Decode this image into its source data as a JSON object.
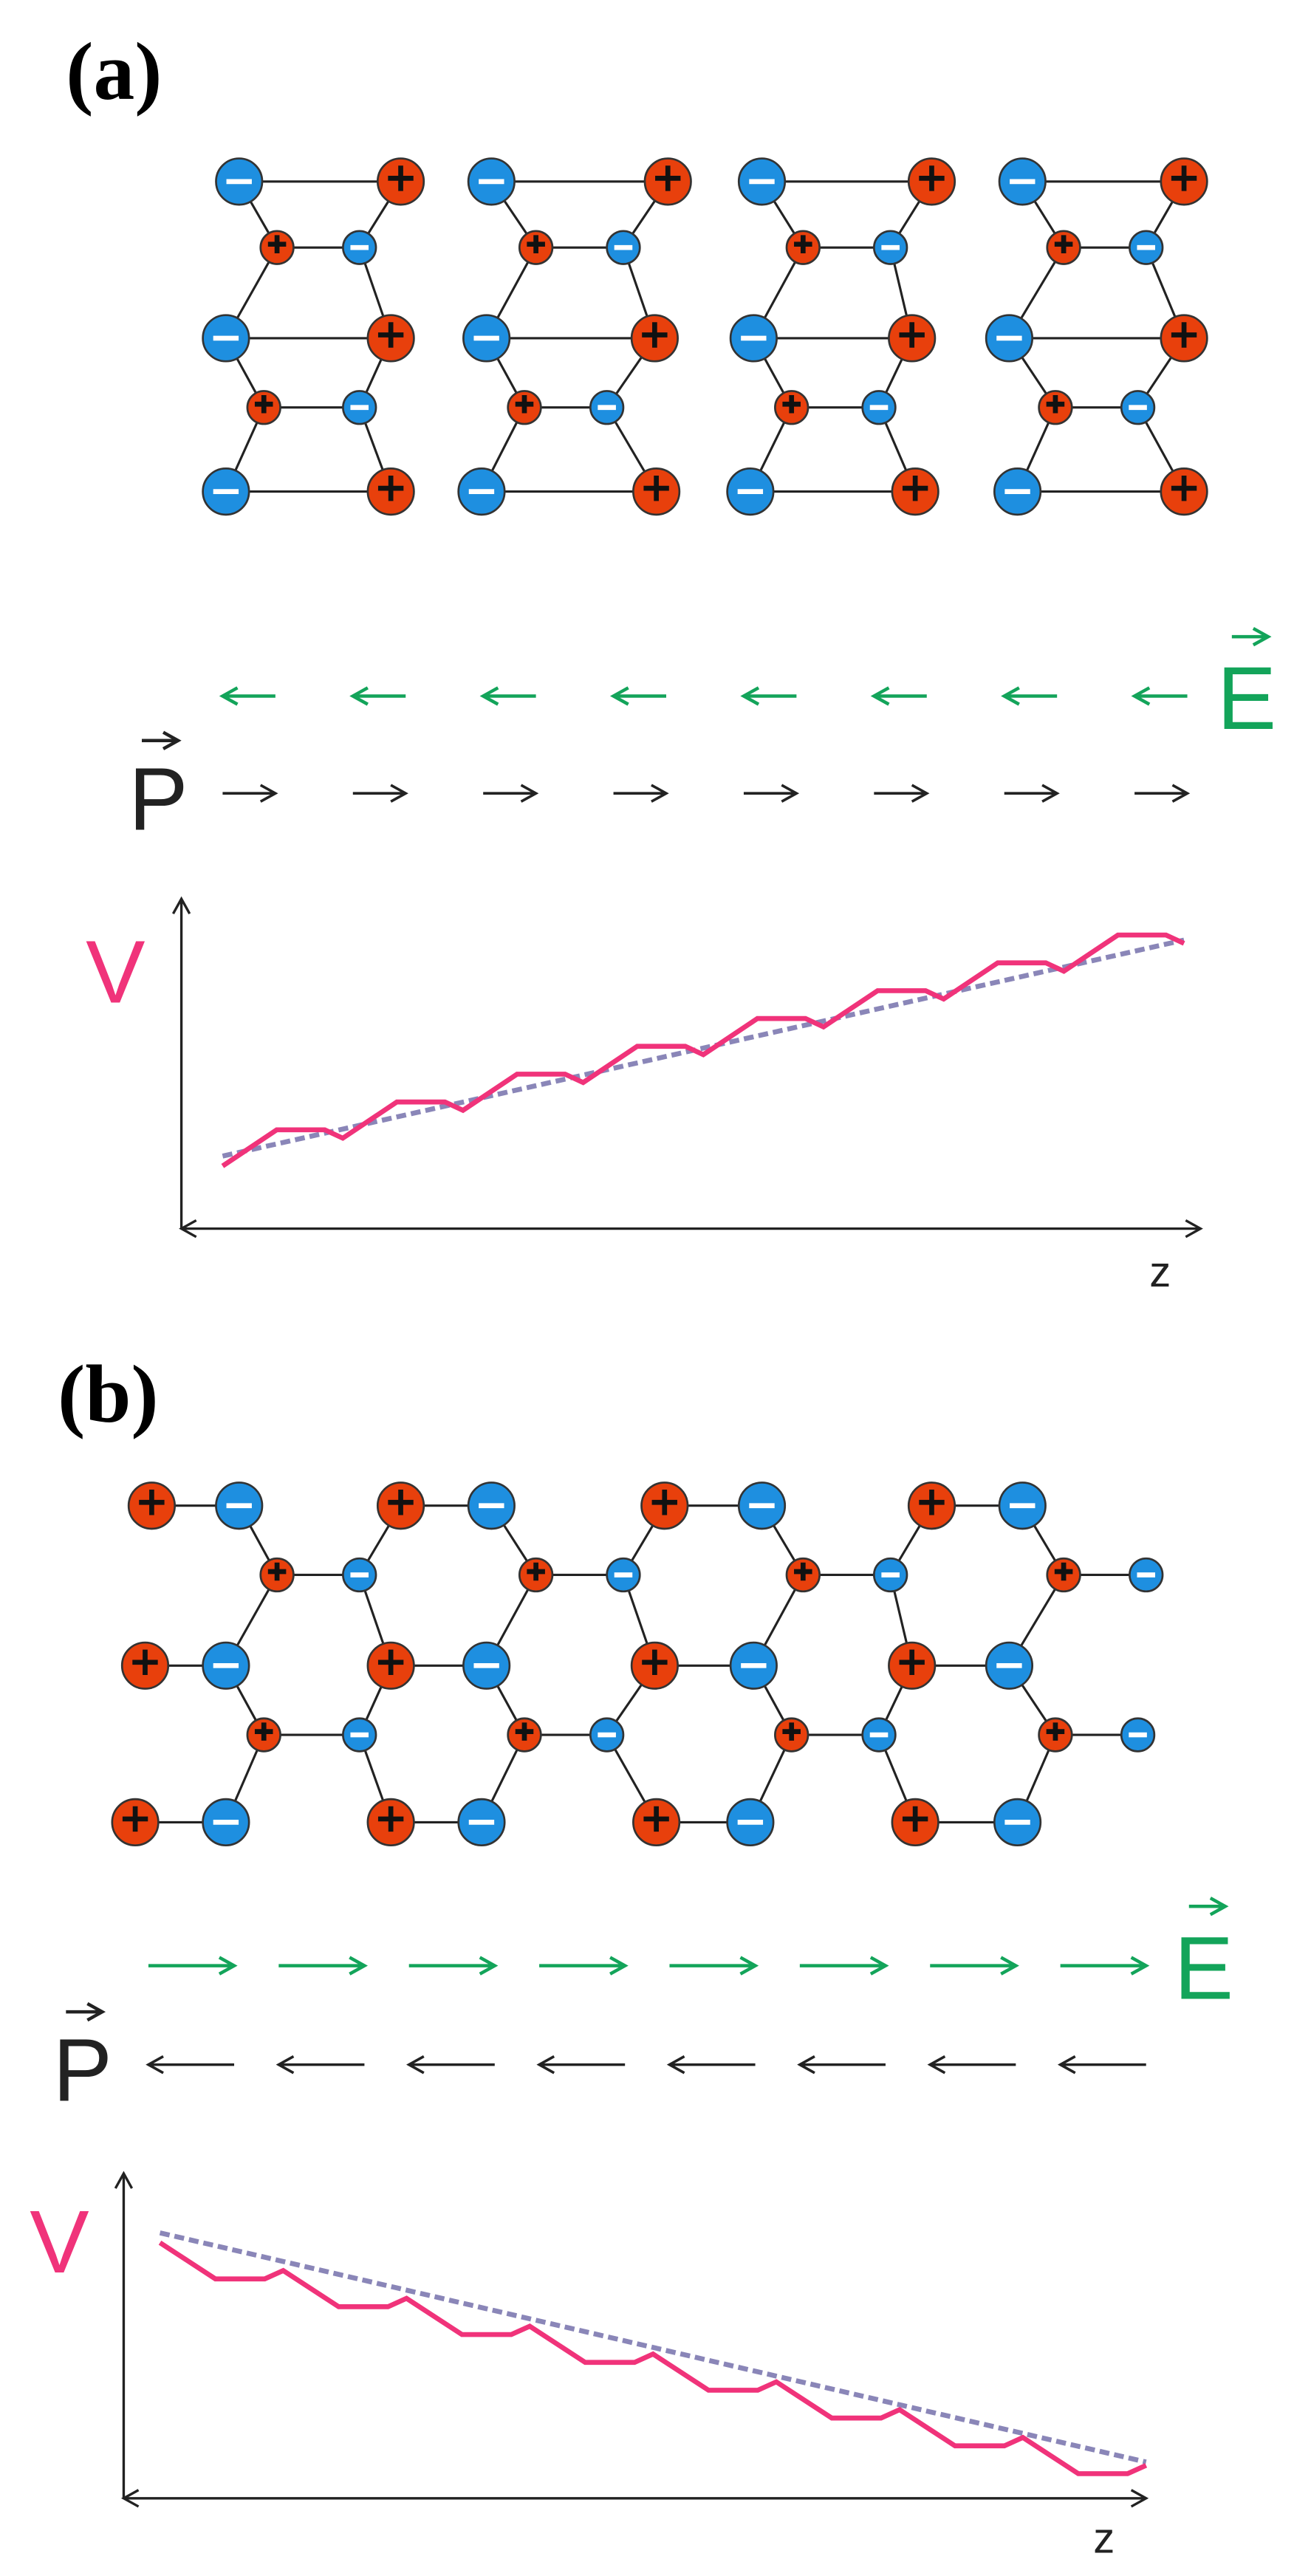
{
  "panels": [
    {
      "label": "(a)",
      "field_label": "E",
      "polarization_label": "P",
      "potential_label": "V",
      "position_label": "z"
    },
    {
      "label": "(b)",
      "field_label": "E",
      "polarization_label": "P",
      "potential_label": "V",
      "position_label": "z"
    }
  ]
}
